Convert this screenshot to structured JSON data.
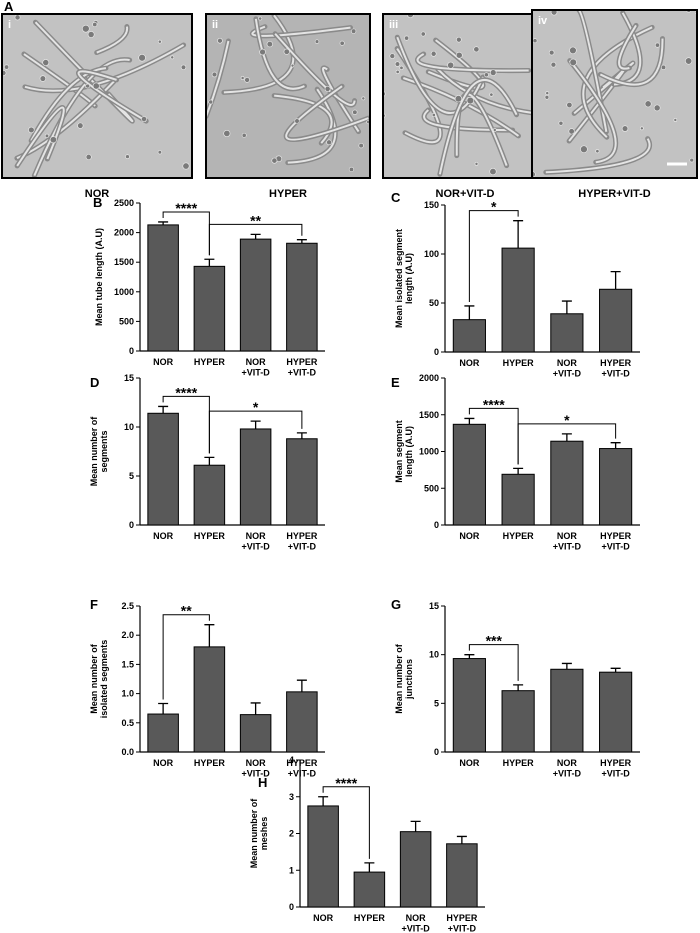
{
  "figure_label": "A",
  "micrographs": [
    {
      "numeral": "i",
      "caption": "NOR"
    },
    {
      "numeral": "ii",
      "caption": "HYPER"
    },
    {
      "numeral": "iii",
      "caption": "NOR+VIT-D"
    },
    {
      "numeral": "iv",
      "caption": "HYPER+VIT-D"
    }
  ],
  "chart_data": [
    {
      "type": "bar",
      "panel": "B",
      "y_label": "Mean tube length (A.U)",
      "categories": [
        "NOR",
        "HYPER",
        "NOR\n+VIT-D",
        "HYPER\n+VIT-D"
      ],
      "values": [
        2130,
        1430,
        1890,
        1820
      ],
      "errors": [
        50,
        120,
        80,
        60
      ],
      "color": "#595959",
      "ylim": [
        0,
        2500
      ],
      "yticks": [
        0,
        500,
        1000,
        1500,
        2000,
        2500
      ],
      "significance": [
        {
          "from": 0,
          "to": 1,
          "label": "****"
        },
        {
          "from": 1,
          "to": 3,
          "label": "**"
        }
      ]
    },
    {
      "type": "bar",
      "panel": "C",
      "y_label": "Mean isolated segment\nlength (A.U)",
      "categories": [
        "NOR",
        "HYPER",
        "NOR\n+VIT-D",
        "HYPER\n+VIT-D"
      ],
      "values": [
        33,
        106,
        39,
        64
      ],
      "errors": [
        14,
        28,
        13,
        18
      ],
      "color": "#595959",
      "ylim": [
        0,
        150
      ],
      "yticks": [
        0,
        50,
        100,
        150
      ],
      "significance": [
        {
          "from": 0,
          "to": 1,
          "label": "*"
        }
      ]
    },
    {
      "type": "bar",
      "panel": "D",
      "y_label": "Mean number of\nsegments",
      "categories": [
        "NOR",
        "HYPER",
        "NOR\n+VIT-D",
        "HYPER\n+VIT-D"
      ],
      "values": [
        11.4,
        6.1,
        9.8,
        8.8
      ],
      "errors": [
        0.7,
        0.8,
        0.8,
        0.6
      ],
      "color": "#595959",
      "ylim": [
        0,
        15
      ],
      "yticks": [
        0,
        5,
        10,
        15
      ],
      "significance": [
        {
          "from": 0,
          "to": 1,
          "label": "****"
        },
        {
          "from": 1,
          "to": 3,
          "label": "*"
        }
      ]
    },
    {
      "type": "bar",
      "panel": "E",
      "y_label": "Mean segment\nlength (A.U)",
      "categories": [
        "NOR",
        "HYPER",
        "NOR\n+VIT-D",
        "HYPER\n+VIT-D"
      ],
      "values": [
        1370,
        690,
        1140,
        1040
      ],
      "errors": [
        80,
        80,
        100,
        80
      ],
      "color": "#595959",
      "ylim": [
        0,
        2000
      ],
      "yticks": [
        0,
        500,
        1000,
        1500,
        2000
      ],
      "significance": [
        {
          "from": 0,
          "to": 1,
          "label": "****"
        },
        {
          "from": 1,
          "to": 3,
          "label": "*"
        }
      ]
    },
    {
      "type": "bar",
      "panel": "F",
      "y_label": "Mean number of\nisolated segments",
      "categories": [
        "NOR",
        "HYPER",
        "NOR\n+VIT-D",
        "HYPER\n+VIT-D"
      ],
      "values": [
        0.65,
        1.8,
        0.64,
        1.03
      ],
      "errors": [
        0.18,
        0.38,
        0.2,
        0.2
      ],
      "color": "#595959",
      "ylim": [
        0,
        2.5
      ],
      "yticks": [
        {
          "value": 0,
          "label": "0.0"
        },
        0.5,
        {
          "value": 1,
          "label": "1.0"
        },
        1.5,
        {
          "value": 2,
          "label": "2.0"
        },
        2.5
      ],
      "significance": [
        {
          "from": 0,
          "to": 1,
          "label": "**"
        }
      ]
    },
    {
      "type": "bar",
      "panel": "G",
      "y_label": "Mean number of\njunctions",
      "categories": [
        "NOR",
        "HYPER",
        "NOR\n+VIT-D",
        "HYPER\n+VIT-D"
      ],
      "values": [
        9.6,
        6.3,
        8.5,
        8.2
      ],
      "errors": [
        0.4,
        0.6,
        0.6,
        0.4
      ],
      "color": "#595959",
      "ylim": [
        0,
        15
      ],
      "yticks": [
        0,
        5,
        10,
        15
      ],
      "significance": [
        {
          "from": 0,
          "to": 1,
          "label": "***"
        }
      ]
    },
    {
      "type": "bar",
      "panel": "H",
      "y_label": "Mean number of\nmeshes",
      "categories": [
        "NOR",
        "HYPER",
        "NOR\n+VIT-D",
        "HYPER\n+VIT-D"
      ],
      "values": [
        2.75,
        0.95,
        2.05,
        1.72
      ],
      "errors": [
        0.25,
        0.25,
        0.28,
        0.2
      ],
      "color": "#595959",
      "ylim": [
        0,
        4
      ],
      "yticks": [
        0,
        1,
        2,
        3,
        4
      ],
      "significance": [
        {
          "from": 0,
          "to": 1,
          "label": "****"
        }
      ]
    }
  ]
}
